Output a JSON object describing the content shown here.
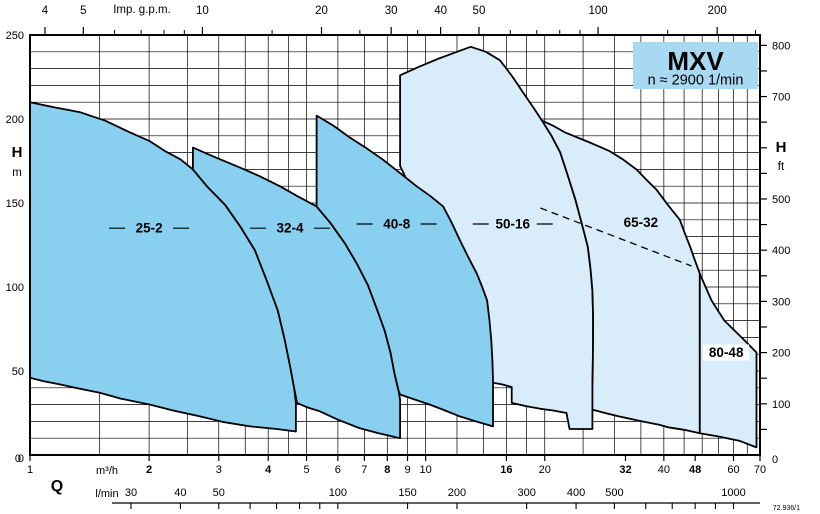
{
  "title_box": {
    "model": "MXV",
    "speed": "n ≈ 2900 1/min"
  },
  "doc_code": "72.936/1",
  "colors": {
    "dark_fill": "#89cfef",
    "light_fill": "#d9ecf9",
    "title_fill": "#a8d8f2",
    "line": "#000000"
  },
  "axes": {
    "top": {
      "label": "Imp. g.p.m.",
      "major": [
        4,
        5,
        10,
        20,
        30,
        40,
        50,
        100,
        200
      ],
      "minor": [
        6,
        7,
        8,
        9,
        15,
        25,
        35,
        60,
        70,
        80,
        90,
        150,
        250
      ]
    },
    "left": {
      "label": "H",
      "unit": "m",
      "major": [
        50,
        100,
        150,
        200,
        250
      ],
      "zero": "0",
      "grid_step_m": 10
    },
    "right": {
      "label": "H",
      "unit": "ft",
      "major": [
        100,
        200,
        300,
        400,
        500,
        700,
        800
      ],
      "zero": "0",
      "tick_step_ft": 50
    },
    "bottom": {
      "label": "Q",
      "unit_m3h": "m³/h",
      "unit_lmin": "l/min",
      "zero_left": "0",
      "zero_right": "0",
      "m3h": [
        {
          "v": 1,
          "bold": false
        },
        {
          "v": 2,
          "bold": true
        },
        {
          "v": 3,
          "bold": false
        },
        {
          "v": 4,
          "bold": true
        },
        {
          "v": 5,
          "bold": false
        },
        {
          "v": 6,
          "bold": false
        },
        {
          "v": 7,
          "bold": false
        },
        {
          "v": 8,
          "bold": true
        },
        {
          "v": 9,
          "bold": false
        },
        {
          "v": 10,
          "bold": false
        },
        {
          "v": 16,
          "bold": true
        },
        {
          "v": 20,
          "bold": false
        },
        {
          "v": 32,
          "bold": true
        },
        {
          "v": 40,
          "bold": false
        },
        {
          "v": 48,
          "bold": true
        },
        {
          "v": 60,
          "bold": false
        },
        {
          "v": 70,
          "bold": false
        }
      ],
      "lmin_labels": [
        30,
        40,
        50,
        100,
        150,
        200,
        300,
        400,
        500,
        1000
      ],
      "lmin_ticks": [
        30,
        40,
        50,
        60,
        70,
        80,
        90,
        100,
        150,
        200,
        300,
        400,
        500,
        600,
        700,
        800,
        900,
        1000
      ],
      "minor_grid": [
        1.5,
        2,
        2.5,
        3,
        3.5,
        4,
        4.5,
        5,
        6,
        7,
        8,
        9,
        10,
        12,
        14,
        16,
        18,
        20,
        25,
        30,
        35,
        40,
        45,
        50,
        55,
        60,
        65,
        70
      ]
    }
  },
  "chart_data": {
    "type": "area",
    "title": "MXV pump selection ranges",
    "x_axis": {
      "label": "Q",
      "units": [
        "m³/h",
        "l/min",
        "Imp. g.p.m."
      ],
      "scale": "log",
      "range_m3h": [
        1,
        70
      ]
    },
    "y_axis": {
      "label": "H",
      "units": [
        "m",
        "ft"
      ],
      "range_m": [
        0,
        250
      ],
      "grid": true
    },
    "envelopes": [
      {
        "name": "50-16",
        "group": "light",
        "label_at": [
          16.6,
          137.5
        ],
        "flank_dashes": true,
        "label_bg": false,
        "points": [
          [
            8.62,
            226
          ],
          [
            9.6,
            231
          ],
          [
            10.8,
            236
          ],
          [
            12,
            240
          ],
          [
            13,
            243
          ],
          [
            14.2,
            240
          ],
          [
            15.4,
            235
          ],
          [
            16,
            230
          ],
          [
            16.6,
            225
          ],
          [
            17.6,
            216
          ],
          [
            18.7,
            207
          ],
          [
            19.7,
            199
          ],
          [
            20.8,
            190
          ],
          [
            21.9,
            180
          ],
          [
            22.9,
            166
          ],
          [
            23.9,
            152
          ],
          [
            24.8,
            138
          ],
          [
            25.7,
            124
          ],
          [
            26.1,
            111
          ],
          [
            26.4,
            98
          ],
          [
            26.5,
            83
          ],
          [
            26.5,
            68
          ],
          [
            26.45,
            54
          ],
          [
            26.4,
            40
          ],
          [
            26.4,
            27
          ],
          [
            26.4,
            15.5
          ],
          [
            23.1,
            15.5
          ],
          [
            22.7,
            25
          ],
          [
            21,
            26.5
          ],
          [
            19.5,
            27.5
          ],
          [
            18,
            29
          ],
          [
            16.5,
            31
          ],
          [
            16.5,
            40.5
          ],
          [
            15.6,
            42
          ],
          [
            14.8,
            43
          ],
          [
            11,
            120
          ],
          [
            8.62,
            172
          ]
        ]
      },
      {
        "name": "65-32",
        "group": "light",
        "label_at": [
          35,
          138.5
        ],
        "flank_dashes": false,
        "label_bg": false,
        "points": [
          [
            19.7,
            199
          ],
          [
            21,
            196
          ],
          [
            22.5,
            192
          ],
          [
            24.2,
            189
          ],
          [
            26,
            186
          ],
          [
            27.5,
            183.5
          ],
          [
            29.1,
            181
          ],
          [
            31.5,
            176
          ],
          [
            34.1,
            170
          ],
          [
            36.1,
            164
          ],
          [
            38.3,
            158
          ],
          [
            40.9,
            149
          ],
          [
            43.9,
            140
          ],
          [
            45.2,
            132
          ],
          [
            46.6,
            124
          ],
          [
            47.9,
            116
          ],
          [
            49.3,
            108
          ],
          [
            49.3,
            13
          ],
          [
            45,
            15
          ],
          [
            41,
            16.5
          ],
          [
            38.9,
            18
          ],
          [
            34.5,
            20.5
          ],
          [
            30.8,
            23
          ],
          [
            28.4,
            25
          ],
          [
            26.4,
            27
          ],
          [
            26.4,
            40
          ],
          [
            26.45,
            54
          ],
          [
            26.5,
            68
          ],
          [
            26.5,
            83
          ],
          [
            26.4,
            98
          ],
          [
            26.1,
            111
          ],
          [
            25.7,
            124
          ],
          [
            24.8,
            138
          ],
          [
            23.9,
            152
          ],
          [
            22.9,
            166
          ],
          [
            21.9,
            180
          ],
          [
            20.8,
            190
          ]
        ]
      },
      {
        "name": "80-48",
        "group": "light",
        "label_at": [
          57.5,
          61
        ],
        "flank_dashes": false,
        "label_bg": true,
        "points": [
          [
            49.3,
            108
          ],
          [
            51,
            100
          ],
          [
            52.8,
            92
          ],
          [
            54.8,
            86
          ],
          [
            56.9,
            80
          ],
          [
            59.8,
            75
          ],
          [
            62.9,
            70
          ],
          [
            65.7,
            65.5
          ],
          [
            68.6,
            61
          ],
          [
            68.6,
            30
          ],
          [
            68.6,
            4.5
          ],
          [
            62,
            8.5
          ],
          [
            55,
            11
          ],
          [
            49.3,
            13
          ]
        ]
      },
      {
        "name": "25-2",
        "group": "dark",
        "label_at": [
          2,
          135
        ],
        "flank_dashes": true,
        "label_bg": false,
        "points": [
          [
            1,
            210
          ],
          [
            1.15,
            207
          ],
          [
            1.34,
            204
          ],
          [
            1.55,
            199
          ],
          [
            1.79,
            192
          ],
          [
            2,
            187
          ],
          [
            2.19,
            181
          ],
          [
            2.4,
            176
          ],
          [
            2.58,
            170
          ],
          [
            2.8,
            160
          ],
          [
            3.11,
            149
          ],
          [
            3.4,
            136
          ],
          [
            3.7,
            122
          ],
          [
            3.95,
            105
          ],
          [
            4.23,
            86
          ],
          [
            4.4,
            69
          ],
          [
            4.56,
            51
          ],
          [
            4.65,
            40
          ],
          [
            4.7,
            31
          ],
          [
            4.7,
            14
          ],
          [
            4.2,
            15.5
          ],
          [
            3.6,
            17
          ],
          [
            3.1,
            19.5
          ],
          [
            2.69,
            23
          ],
          [
            2.3,
            26.5
          ],
          [
            2.01,
            30
          ],
          [
            1.7,
            33.5
          ],
          [
            1.5,
            37
          ],
          [
            1.3,
            40
          ],
          [
            1.19,
            42
          ],
          [
            1.08,
            44
          ],
          [
            1,
            46
          ]
        ]
      },
      {
        "name": "32-4",
        "group": "dark",
        "label_at": [
          4.54,
          135
        ],
        "flank_dashes": true,
        "label_bg": false,
        "points": [
          [
            2.58,
            183
          ],
          [
            2.95,
            177
          ],
          [
            3.4,
            171
          ],
          [
            3.8,
            166
          ],
          [
            4.28,
            160
          ],
          [
            4.75,
            154
          ],
          [
            5.3,
            148
          ],
          [
            5.75,
            138
          ],
          [
            6.25,
            126
          ],
          [
            6.7,
            114
          ],
          [
            7.15,
            101
          ],
          [
            7.5,
            88
          ],
          [
            7.88,
            74
          ],
          [
            8.15,
            61
          ],
          [
            8.35,
            48
          ],
          [
            8.55,
            38
          ],
          [
            8.62,
            33
          ],
          [
            8.62,
            10
          ],
          [
            7.6,
            13
          ],
          [
            6.8,
            16
          ],
          [
            6,
            21
          ],
          [
            5.4,
            26
          ],
          [
            5,
            28.5
          ],
          [
            4.73,
            31
          ],
          [
            4.65,
            40
          ],
          [
            4.56,
            51
          ],
          [
            4.4,
            69
          ],
          [
            4.23,
            86
          ],
          [
            3.95,
            105
          ],
          [
            3.7,
            122
          ],
          [
            3.4,
            136
          ],
          [
            3.11,
            149
          ],
          [
            2.8,
            160
          ],
          [
            2.58,
            170
          ]
        ]
      },
      {
        "name": "40-8",
        "group": "dark",
        "label_at": [
          8.45,
          137.5
        ],
        "flank_dashes": true,
        "label_bg": false,
        "points": [
          [
            5.3,
            202
          ],
          [
            5.85,
            196
          ],
          [
            6.43,
            189
          ],
          [
            7.05,
            183
          ],
          [
            7.78,
            176
          ],
          [
            8.6,
            168
          ],
          [
            9.48,
            160
          ],
          [
            10.3,
            154
          ],
          [
            11.07,
            148
          ],
          [
            11.6,
            139
          ],
          [
            12.2,
            128
          ],
          [
            12.8,
            118
          ],
          [
            13.47,
            108
          ],
          [
            13.9,
            100
          ],
          [
            14.3,
            92
          ],
          [
            14.5,
            80
          ],
          [
            14.65,
            68
          ],
          [
            14.75,
            56
          ],
          [
            14.8,
            45
          ],
          [
            14.8,
            17
          ],
          [
            13.4,
            20
          ],
          [
            12.2,
            23
          ],
          [
            11.2,
            26.5
          ],
          [
            10.25,
            30
          ],
          [
            9.4,
            33
          ],
          [
            8.62,
            36
          ],
          [
            8.55,
            38
          ],
          [
            8.35,
            48
          ],
          [
            8.15,
            61
          ],
          [
            7.88,
            74
          ],
          [
            7.5,
            88
          ],
          [
            7.15,
            101
          ],
          [
            6.7,
            114
          ],
          [
            6.25,
            126
          ],
          [
            5.75,
            138
          ],
          [
            5.3,
            148
          ]
        ]
      }
    ],
    "dashed_line": {
      "from": [
        19.5,
        147
      ],
      "to": [
        47,
        112.5
      ]
    }
  }
}
